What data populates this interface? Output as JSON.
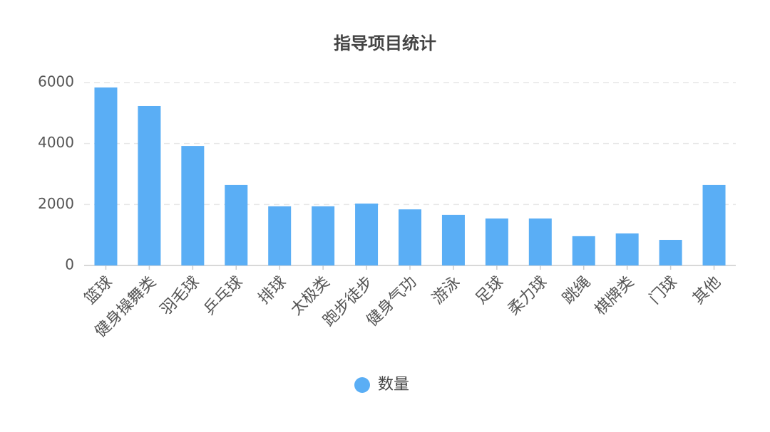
{
  "chart_data": {
    "type": "bar",
    "title": "指导项目统计",
    "categories": [
      "篮球",
      "健身操舞类",
      "羽毛球",
      "乒乓球",
      "排球",
      "太极类",
      "跑步徒步",
      "健身气功",
      "游泳",
      "足球",
      "柔力球",
      "跳绳",
      "棋牌类",
      "门球",
      "其他"
    ],
    "series": [
      {
        "name": "数量",
        "color": "#5aaef5",
        "values": [
          5840,
          5230,
          3920,
          2640,
          1940,
          1940,
          2030,
          1840,
          1660,
          1540,
          1540,
          960,
          1050,
          840,
          2640
        ]
      }
    ],
    "ylim": [
      0,
      6000
    ],
    "yticks": [
      0,
      2000,
      4000,
      6000
    ],
    "grid": true,
    "legend": "bottom"
  }
}
